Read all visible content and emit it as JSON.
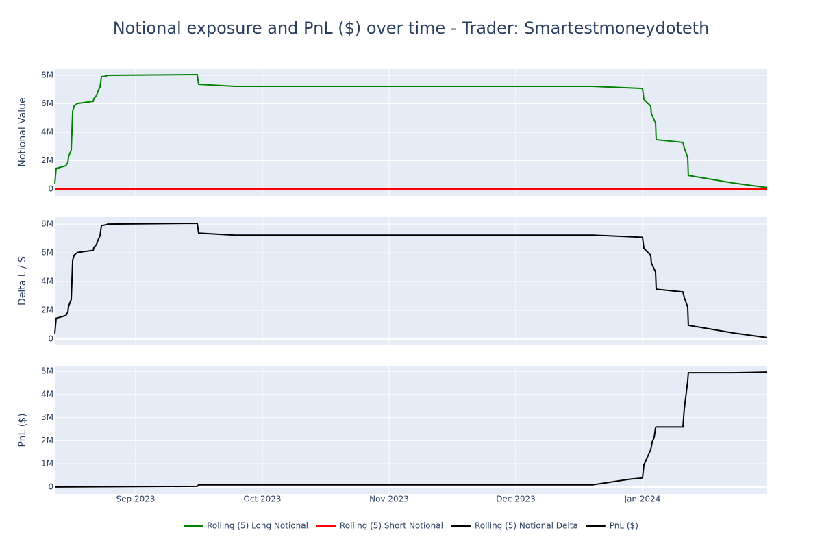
{
  "title": "Notional exposure and PnL ($) over time - Trader: Smartestmoneydoteth",
  "chart_data": [
    {
      "type": "line",
      "ylabel": "Notional Value",
      "x": [
        8.362,
        8.373,
        8.449,
        8.465,
        8.47,
        8.492,
        8.503,
        8.514,
        8.535,
        8.541,
        8.665,
        8.67,
        8.692,
        8.703,
        8.719,
        8.73,
        8.768,
        8.778,
        9.486,
        9.497,
        9.784,
        12.605,
        13.0,
        13.011,
        13.065,
        13.07,
        13.092,
        13.103,
        13.108,
        13.319,
        13.33,
        13.357,
        13.362,
        13.714,
        13.984
      ],
      "series": [
        {
          "name": "Rolling (5) Long Notional",
          "color": "#008000",
          "values": [
            390000,
            1450000,
            1640000,
            1880000,
            2270000,
            2750000,
            5490000,
            5830000,
            5980000,
            6020000,
            6170000,
            6360000,
            6600000,
            6890000,
            7180000,
            7900000,
            7950000,
            8000000,
            8050000,
            7370000,
            7230000,
            7230000,
            7080000,
            6310000,
            5830000,
            5300000,
            4870000,
            4670000,
            3470000,
            3280000,
            2890000,
            2220000,
            960000,
            430000,
            100000
          ]
        },
        {
          "name": "Rolling (5) Short Notional",
          "color": "#ff0000",
          "values": [
            0,
            0,
            0,
            0,
            0,
            0,
            0,
            0,
            0,
            0,
            0,
            0,
            0,
            0,
            0,
            0,
            0,
            0,
            0,
            0,
            0,
            0,
            0,
            0,
            0,
            0,
            0,
            0,
            0,
            0,
            0,
            0,
            0,
            0,
            0
          ]
        }
      ],
      "xlim": [
        8.362,
        13.984
      ],
      "ylim": [
        -482000,
        8482000
      ],
      "yticks": [
        0,
        {
          "value": 2000000,
          "label": "2M"
        },
        {
          "value": 4000000,
          "label": "4M"
        },
        {
          "value": 6000000,
          "label": "6M"
        },
        {
          "value": 8000000,
          "label": "8M"
        }
      ],
      "grid": true
    },
    {
      "type": "line",
      "ylabel": "Delta L / S",
      "x": [
        8.362,
        8.373,
        8.449,
        8.465,
        8.47,
        8.492,
        8.503,
        8.514,
        8.535,
        8.541,
        8.665,
        8.67,
        8.692,
        8.703,
        8.719,
        8.73,
        8.768,
        8.778,
        9.486,
        9.497,
        9.784,
        12.605,
        13.0,
        13.011,
        13.065,
        13.07,
        13.092,
        13.103,
        13.108,
        13.319,
        13.33,
        13.357,
        13.362,
        13.714,
        13.984
      ],
      "series": [
        {
          "name": "Rolling (5) Notional Delta",
          "color": "#000000",
          "values": [
            390000,
            1450000,
            1640000,
            1880000,
            2270000,
            2750000,
            5490000,
            5830000,
            5980000,
            6020000,
            6170000,
            6360000,
            6600000,
            6890000,
            7180000,
            7900000,
            7950000,
            8000000,
            8050000,
            7370000,
            7230000,
            7230000,
            7080000,
            6310000,
            5830000,
            5300000,
            4870000,
            4670000,
            3470000,
            3280000,
            2890000,
            2220000,
            960000,
            430000,
            100000
          ]
        }
      ],
      "xlim": [
        8.362,
        13.984
      ],
      "ylim": [
        -380000,
        8480000
      ],
      "yticks": [
        0,
        {
          "value": 2000000,
          "label": "2M"
        },
        {
          "value": 4000000,
          "label": "4M"
        },
        {
          "value": 6000000,
          "label": "6M"
        },
        {
          "value": 8000000,
          "label": "8M"
        }
      ],
      "grid": true
    },
    {
      "type": "line",
      "ylabel": "PnL ($)",
      "x": [
        8.362,
        9.486,
        9.497,
        12.605,
        12.892,
        13.0,
        13.011,
        13.065,
        13.076,
        13.092,
        13.103,
        13.108,
        13.319,
        13.33,
        13.357,
        13.362,
        13.714,
        13.984
      ],
      "series": [
        {
          "name": "PnL ($)",
          "color": "#000000",
          "values": [
            0,
            30000,
            90000,
            90000,
            330000,
            390000,
            950000,
            1610000,
            1930000,
            2140000,
            2560000,
            2590000,
            2590000,
            3390000,
            4580000,
            4940000,
            4940000,
            4970000
          ]
        }
      ],
      "xlim": [
        8.362,
        13.984
      ],
      "ylim": [
        -300000,
        5210000
      ],
      "xticks": [
        {
          "value": 9,
          "label": "Sep 2023"
        },
        {
          "value": 10,
          "label": "Oct 2023"
        },
        {
          "value": 11,
          "label": "Nov 2023"
        },
        {
          "value": 12,
          "label": "Dec 2023"
        },
        {
          "value": 13,
          "label": "Jan 2024"
        }
      ],
      "yticks": [
        0,
        {
          "value": 1000000,
          "label": "1M"
        },
        {
          "value": 2000000,
          "label": "2M"
        },
        {
          "value": 3000000,
          "label": "3M"
        },
        {
          "value": 4000000,
          "label": "4M"
        },
        {
          "value": 5000000,
          "label": "5M"
        }
      ],
      "grid": true
    }
  ]
}
